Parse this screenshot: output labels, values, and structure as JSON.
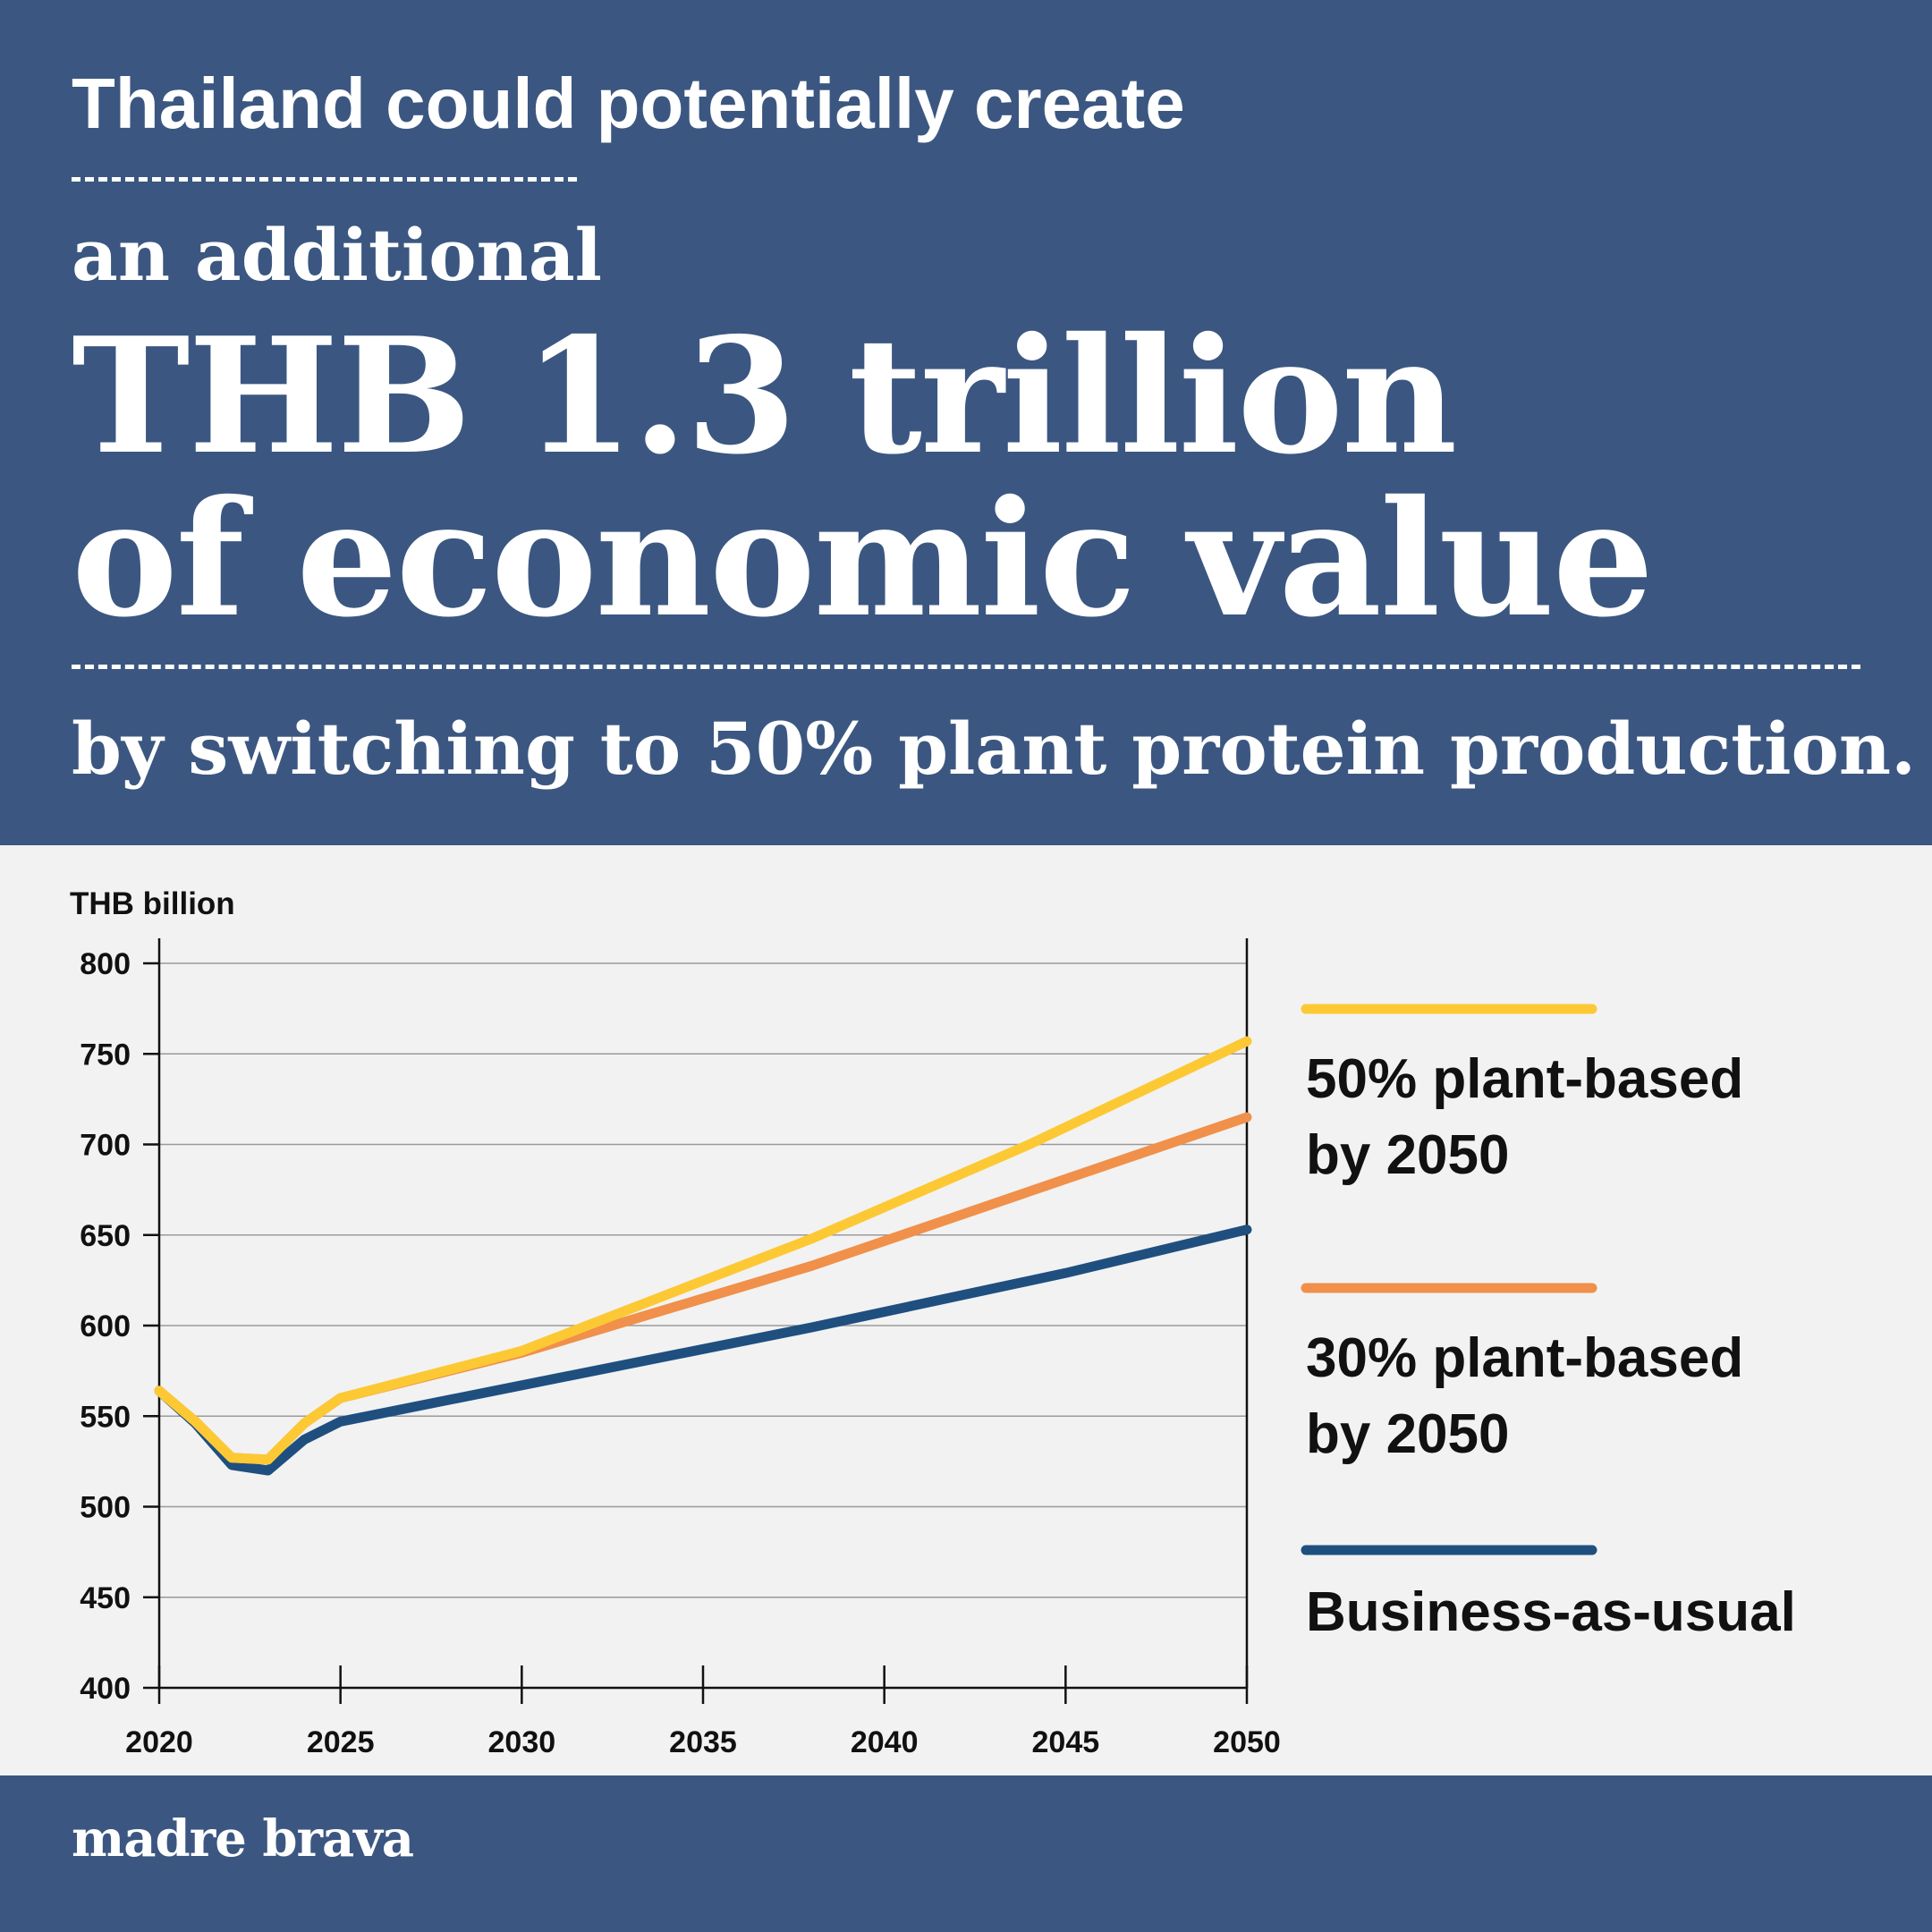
{
  "header": {
    "intro": "Thailand could potentially create",
    "additional": "an additional",
    "headline_line1": "THB 1.3 trillion",
    "headline_line2": "of economic value",
    "closing": "by switching to 50% plant protein production."
  },
  "footer": {
    "brand": "madre brava"
  },
  "colors": {
    "header_bg": "#3b5781",
    "chart_bg": "#f2f2f2",
    "yellow": "#fcc934",
    "orange": "#f0904a",
    "navy": "#1f4f7f"
  },
  "chart_data": {
    "type": "line",
    "title": "",
    "xlabel": "",
    "ylabel": "THB billion",
    "xlim": [
      2020,
      2050
    ],
    "ylim": [
      400,
      800
    ],
    "xticks": [
      "2020",
      "2025",
      "2030",
      "2035",
      "2040",
      "2045",
      "2050"
    ],
    "yticks": [
      "800",
      "750",
      "700",
      "650",
      "600",
      "550",
      "500",
      "450",
      "400"
    ],
    "grid": true,
    "legend_position": "right",
    "series": [
      {
        "name": "50% plant-based by 2050",
        "legend_line1": "50% plant-based",
        "legend_line2": "by 2050",
        "color": "#fcc934",
        "x": [
          2020,
          2021,
          2022,
          2023,
          2024,
          2025,
          2030,
          2038,
          2044,
          2050
        ],
        "y": [
          564,
          547,
          527,
          526,
          546,
          560,
          586,
          648,
          700,
          757
        ]
      },
      {
        "name": "30% plant-based by 2050",
        "legend_line1": "30% plant-based",
        "legend_line2": "by 2050",
        "color": "#f0904a",
        "x": [
          2020,
          2021,
          2022,
          2023,
          2024,
          2025,
          2030,
          2038,
          2044,
          2050
        ],
        "y": [
          564,
          547,
          527,
          526,
          546,
          560,
          585,
          633,
          674,
          715
        ]
      },
      {
        "name": "Business-as-usual",
        "legend_line1": "Business-as-usual",
        "legend_line2": "",
        "color": "#1f4f7f",
        "x": [
          2020,
          2021,
          2022,
          2023,
          2024,
          2025,
          2030,
          2038,
          2045,
          2050
        ],
        "y": [
          564,
          546,
          523,
          520,
          537,
          547,
          567,
          599,
          629,
          653
        ]
      }
    ]
  }
}
